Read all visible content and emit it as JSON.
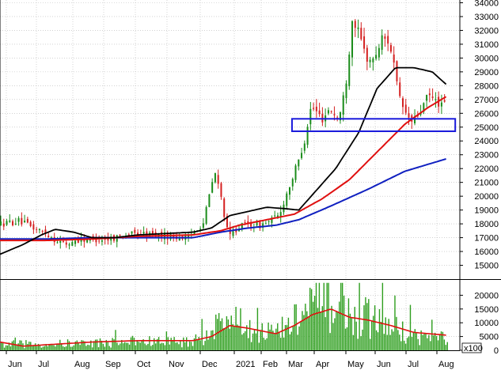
{
  "chart_data": [
    {
      "type": "candlestick",
      "panel": "price",
      "y_ticks": [
        15000,
        16000,
        17000,
        18000,
        19000,
        20000,
        21000,
        22000,
        23000,
        24000,
        25000,
        26000,
        27000,
        28000,
        29000,
        30000,
        31000,
        32000,
        33000,
        34000
      ],
      "ylim": [
        14000,
        34200
      ],
      "x_tick_labels": [
        "Jun",
        "Jul",
        "Aug",
        "Sep",
        "Oct",
        "Nov",
        "Dec",
        "2021",
        "Feb",
        "Mar",
        "Apr",
        "May",
        "Jun",
        "Jul",
        "Aug"
      ],
      "grid": true,
      "colors": {
        "up": "#1a8c1a",
        "down": "#d42020",
        "ma_black": "#000000",
        "ma_red": "#e01010",
        "ma_blue": "#1020c0",
        "box": "#1a1adc"
      },
      "price_series": [
        {
          "t": 0,
          "v": 18000
        },
        {
          "t": 0.04,
          "v": 18200
        },
        {
          "t": 0.07,
          "v": 17700
        },
        {
          "t": 0.1,
          "v": 17300
        },
        {
          "t": 0.12,
          "v": 16800
        },
        {
          "t": 0.145,
          "v": 16500
        },
        {
          "t": 0.16,
          "v": 16800
        },
        {
          "t": 0.19,
          "v": 16900
        },
        {
          "t": 0.23,
          "v": 16900
        },
        {
          "t": 0.27,
          "v": 17200
        },
        {
          "t": 0.3,
          "v": 17300
        },
        {
          "t": 0.34,
          "v": 17200
        },
        {
          "t": 0.37,
          "v": 17100
        },
        {
          "t": 0.41,
          "v": 17000
        },
        {
          "t": 0.425,
          "v": 17700
        },
        {
          "t": 0.44,
          "v": 18000
        },
        {
          "t": 0.465,
          "v": 21800
        },
        {
          "t": 0.48,
          "v": 19800
        },
        {
          "t": 0.495,
          "v": 17000
        },
        {
          "t": 0.51,
          "v": 17600
        },
        {
          "t": 0.535,
          "v": 18000
        },
        {
          "t": 0.565,
          "v": 17900
        },
        {
          "t": 0.585,
          "v": 18200
        },
        {
          "t": 0.605,
          "v": 18600
        },
        {
          "t": 0.625,
          "v": 20500
        },
        {
          "t": 0.645,
          "v": 22300
        },
        {
          "t": 0.66,
          "v": 24000
        },
        {
          "t": 0.675,
          "v": 26500
        },
        {
          "t": 0.7,
          "v": 25600
        },
        {
          "t": 0.715,
          "v": 26400
        },
        {
          "t": 0.735,
          "v": 25500
        },
        {
          "t": 0.75,
          "v": 28000
        },
        {
          "t": 0.765,
          "v": 33000
        },
        {
          "t": 0.78,
          "v": 31600
        },
        {
          "t": 0.795,
          "v": 30000
        },
        {
          "t": 0.81,
          "v": 29800
        },
        {
          "t": 0.83,
          "v": 31500
        },
        {
          "t": 0.845,
          "v": 31200
        },
        {
          "t": 0.855,
          "v": 29500
        },
        {
          "t": 0.865,
          "v": 27200
        },
        {
          "t": 0.88,
          "v": 26000
        },
        {
          "t": 0.895,
          "v": 25300
        },
        {
          "t": 0.91,
          "v": 26000
        },
        {
          "t": 0.93,
          "v": 27300
        },
        {
          "t": 0.945,
          "v": 26900
        },
        {
          "t": 0.96,
          "v": 26600
        }
      ],
      "ma_black": [
        {
          "t": 0,
          "v": 15800
        },
        {
          "t": 0.05,
          "v": 16500
        },
        {
          "t": 0.09,
          "v": 17200
        },
        {
          "t": 0.12,
          "v": 17600
        },
        {
          "t": 0.16,
          "v": 17400
        },
        {
          "t": 0.2,
          "v": 17000
        },
        {
          "t": 0.25,
          "v": 17000
        },
        {
          "t": 0.3,
          "v": 17200
        },
        {
          "t": 0.36,
          "v": 17300
        },
        {
          "t": 0.42,
          "v": 17400
        },
        {
          "t": 0.46,
          "v": 17700
        },
        {
          "t": 0.5,
          "v": 18600
        },
        {
          "t": 0.54,
          "v": 18900
        },
        {
          "t": 0.58,
          "v": 19200
        },
        {
          "t": 0.62,
          "v": 19100
        },
        {
          "t": 0.65,
          "v": 19000
        },
        {
          "t": 0.69,
          "v": 20500
        },
        {
          "t": 0.73,
          "v": 22000
        },
        {
          "t": 0.78,
          "v": 24600
        },
        {
          "t": 0.82,
          "v": 27800
        },
        {
          "t": 0.86,
          "v": 29300
        },
        {
          "t": 0.9,
          "v": 29300
        },
        {
          "t": 0.94,
          "v": 29000
        },
        {
          "t": 0.97,
          "v": 28100
        }
      ],
      "ma_red": [
        {
          "t": 0,
          "v": 16800
        },
        {
          "t": 0.1,
          "v": 16800
        },
        {
          "t": 0.2,
          "v": 16900
        },
        {
          "t": 0.3,
          "v": 17100
        },
        {
          "t": 0.42,
          "v": 17200
        },
        {
          "t": 0.48,
          "v": 17500
        },
        {
          "t": 0.52,
          "v": 17900
        },
        {
          "t": 0.58,
          "v": 18300
        },
        {
          "t": 0.64,
          "v": 18700
        },
        {
          "t": 0.7,
          "v": 19800
        },
        {
          "t": 0.76,
          "v": 21200
        },
        {
          "t": 0.82,
          "v": 23200
        },
        {
          "t": 0.88,
          "v": 25200
        },
        {
          "t": 0.93,
          "v": 26400
        },
        {
          "t": 0.97,
          "v": 27200
        }
      ],
      "ma_blue": [
        {
          "t": 0,
          "v": 16900
        },
        {
          "t": 0.1,
          "v": 16900
        },
        {
          "t": 0.2,
          "v": 17000
        },
        {
          "t": 0.3,
          "v": 17000
        },
        {
          "t": 0.42,
          "v": 17000
        },
        {
          "t": 0.48,
          "v": 17400
        },
        {
          "t": 0.54,
          "v": 17700
        },
        {
          "t": 0.6,
          "v": 17900
        },
        {
          "t": 0.65,
          "v": 18300
        },
        {
          "t": 0.72,
          "v": 19300
        },
        {
          "t": 0.8,
          "v": 20500
        },
        {
          "t": 0.88,
          "v": 21800
        },
        {
          "t": 0.97,
          "v": 22700
        }
      ],
      "highlight_box": {
        "t_start": 0.635,
        "t_end": 0.99,
        "v_low": 24700,
        "v_high": 25600
      }
    },
    {
      "type": "bar",
      "panel": "volume",
      "y_ticks": [
        0,
        5000,
        10000,
        15000,
        20000
      ],
      "ylim": [
        0,
        25000
      ],
      "multiplier_label": "x100",
      "volume_profile": [
        {
          "t": 0,
          "v": 2500
        },
        {
          "t": 0.1,
          "v": 2500
        },
        {
          "t": 0.2,
          "v": 3000
        },
        {
          "t": 0.3,
          "v": 3500
        },
        {
          "t": 0.42,
          "v": 3500
        },
        {
          "t": 0.46,
          "v": 9000
        },
        {
          "t": 0.5,
          "v": 13000
        },
        {
          "t": 0.53,
          "v": 9000
        },
        {
          "t": 0.6,
          "v": 7000
        },
        {
          "t": 0.64,
          "v": 12000
        },
        {
          "t": 0.68,
          "v": 17000
        },
        {
          "t": 0.72,
          "v": 19000
        },
        {
          "t": 0.76,
          "v": 13000
        },
        {
          "t": 0.8,
          "v": 13000
        },
        {
          "t": 0.85,
          "v": 9000
        },
        {
          "t": 0.9,
          "v": 6000
        },
        {
          "t": 0.97,
          "v": 5000
        }
      ],
      "volume_ma": [
        {
          "t": 0,
          "v": 3000
        },
        {
          "t": 0.05,
          "v": 1500
        },
        {
          "t": 0.1,
          "v": 2000
        },
        {
          "t": 0.2,
          "v": 3000
        },
        {
          "t": 0.3,
          "v": 3500
        },
        {
          "t": 0.42,
          "v": 3500
        },
        {
          "t": 0.46,
          "v": 5000
        },
        {
          "t": 0.5,
          "v": 9000
        },
        {
          "t": 0.54,
          "v": 8000
        },
        {
          "t": 0.6,
          "v": 6000
        },
        {
          "t": 0.64,
          "v": 9000
        },
        {
          "t": 0.68,
          "v": 13000
        },
        {
          "t": 0.72,
          "v": 15000
        },
        {
          "t": 0.76,
          "v": 12000
        },
        {
          "t": 0.8,
          "v": 11000
        },
        {
          "t": 0.85,
          "v": 9000
        },
        {
          "t": 0.9,
          "v": 6500
        },
        {
          "t": 0.97,
          "v": 5500
        }
      ]
    }
  ]
}
